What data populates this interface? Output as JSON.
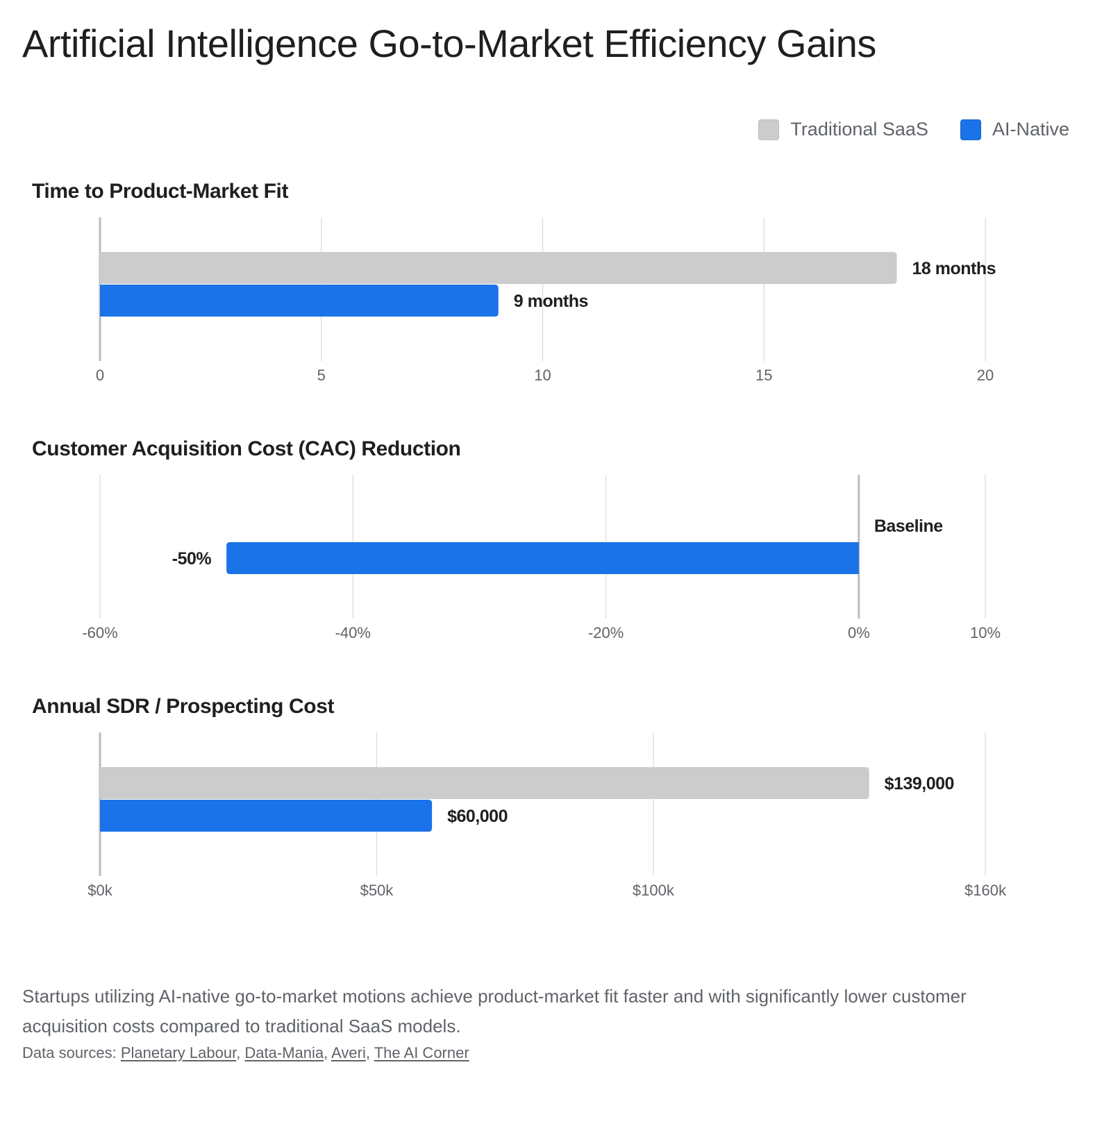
{
  "title": "Artificial Intelligence Go-to-Market Efficiency Gains",
  "legend": {
    "items": [
      {
        "label": "Traditional SaaS",
        "color": "#cccccc"
      },
      {
        "label": "AI-Native",
        "color": "#1a73e8"
      }
    ]
  },
  "colors": {
    "traditional": "#cccccc",
    "ai_native": "#1a73e8",
    "grid": "#e0e0e0",
    "axis": "#bdbdbd",
    "tick_text": "#5f6368",
    "label_text": "#1f1f1f"
  },
  "chart_data": [
    {
      "type": "bar",
      "orientation": "horizontal",
      "title": "Time to Product-Market Fit",
      "xlim": [
        0,
        20
      ],
      "ticks": [
        {
          "value": 0,
          "label": "0"
        },
        {
          "value": 5,
          "label": "5"
        },
        {
          "value": 10,
          "label": "10"
        },
        {
          "value": 15,
          "label": "15"
        },
        {
          "value": 20,
          "label": "20"
        }
      ],
      "baseline": 0,
      "series": [
        {
          "name": "Traditional SaaS",
          "value": 18,
          "label": "18 months"
        },
        {
          "name": "AI-Native",
          "value": 9,
          "label": "9 months"
        }
      ]
    },
    {
      "type": "bar",
      "orientation": "horizontal",
      "title": "Customer Acquisition Cost (CAC) Reduction",
      "xlim": [
        -60,
        10
      ],
      "ticks": [
        {
          "value": -60,
          "label": "-60%"
        },
        {
          "value": -40,
          "label": "-40%"
        },
        {
          "value": -20,
          "label": "-20%"
        },
        {
          "value": 0,
          "label": "0%"
        },
        {
          "value": 10,
          "label": "10%"
        }
      ],
      "baseline": 0,
      "series": [
        {
          "name": "Traditional SaaS",
          "value": 0,
          "label": "Baseline"
        },
        {
          "name": "AI-Native",
          "value": -50,
          "label": "-50%"
        }
      ]
    },
    {
      "type": "bar",
      "orientation": "horizontal",
      "title": "Annual SDR / Prospecting Cost",
      "xlim": [
        0,
        160000
      ],
      "ticks": [
        {
          "value": 0,
          "label": "$0k"
        },
        {
          "value": 50000,
          "label": "$50k"
        },
        {
          "value": 100000,
          "label": "$100k"
        },
        {
          "value": 160000,
          "label": "$160k"
        }
      ],
      "baseline": 0,
      "series": [
        {
          "name": "Traditional SaaS",
          "value": 139000,
          "label": "$139,000"
        },
        {
          "name": "AI-Native",
          "value": 60000,
          "label": "$60,000"
        }
      ]
    }
  ],
  "description": "Startups utilizing AI-native go-to-market motions achieve product-market fit faster and with significantly lower customer acquisition costs compared to traditional SaaS models.",
  "sources": {
    "prefix": "Data sources: ",
    "links": [
      "Planetary Labour",
      "Data-Mania",
      "Averi",
      "The AI Corner"
    ]
  }
}
